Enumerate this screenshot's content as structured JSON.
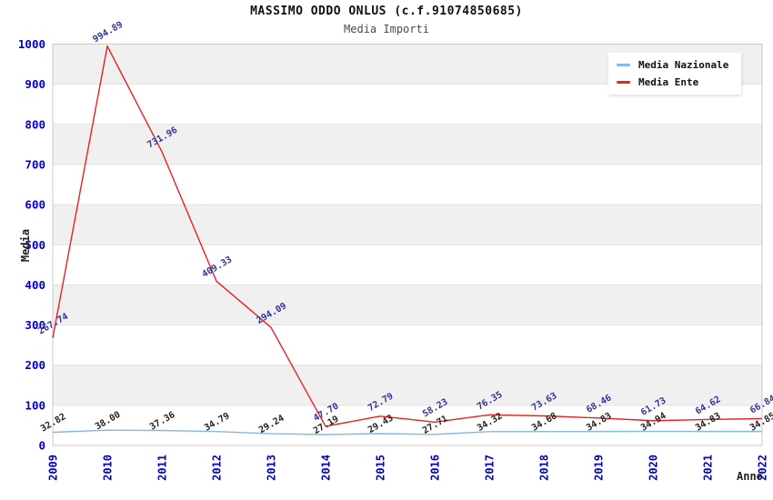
{
  "page": {
    "title": "MASSIMO ODDO ONLUS (c.f.91074850685)",
    "subtitle": "Media Importi"
  },
  "legend": {
    "items": [
      {
        "label": "Media Nazionale",
        "color": "#85b8e2"
      },
      {
        "label": "Media Ente",
        "color": "#e62222"
      }
    ]
  },
  "chart_data": {
    "type": "line",
    "title": "MASSIMO ODDO ONLUS (c.f.91074850685)",
    "subtitle": "Media Importi",
    "xlabel": "Anno",
    "ylabel": "Media",
    "x": [
      "2009",
      "2010",
      "2011",
      "2012",
      "2013",
      "2014",
      "2015",
      "2016",
      "2017",
      "2018",
      "2019",
      "2020",
      "2021",
      "2022"
    ],
    "yticks": [
      0,
      100,
      200,
      300,
      400,
      500,
      600,
      700,
      800,
      900,
      1000
    ],
    "ylim": [
      0,
      1000
    ],
    "grid": "horizontal-bands",
    "legend_position": "top-right",
    "series": [
      {
        "name": "Media Nazionale",
        "color": "#85b8e2",
        "label_color": "#222222",
        "values": [
          32.82,
          38.0,
          37.36,
          34.79,
          29.24,
          27.19,
          29.43,
          27.71,
          34.32,
          34.68,
          34.83,
          34.94,
          34.83,
          34.85
        ]
      },
      {
        "name": "Media Ente",
        "color": "#e62222",
        "label_color": "#333399",
        "values": [
          267.74,
          994.89,
          731.96,
          409.33,
          294.09,
          47.7,
          72.79,
          58.23,
          76.35,
          73.63,
          68.46,
          61.73,
          64.62,
          66.84
        ]
      }
    ],
    "colors": {
      "band_gray": "#f0f0f0",
      "band_white": "#ffffff",
      "gridline": "#e2e2e2",
      "plot_border": "#c9c9c9",
      "tick_label": "#0000cc"
    }
  }
}
